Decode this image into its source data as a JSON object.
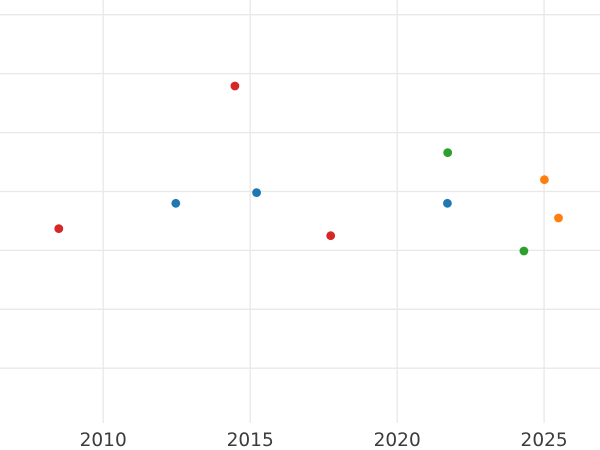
{
  "chart_data": {
    "type": "scatter",
    "title": "",
    "xlabel": "",
    "ylabel": "",
    "xlim": [
      2006.49,
      2026.9
    ],
    "ylim": [
      0.07,
      7.25
    ],
    "xtick_values": [
      2010,
      2015,
      2020,
      2025
    ],
    "xtick_labels": [
      "2010",
      "2015",
      "2020",
      "2025"
    ],
    "ytick_labels": [],
    "y_gridline_values": [
      1,
      2,
      3,
      4,
      5,
      6,
      7
    ],
    "grid": true,
    "legend_position": "none",
    "marker_radius_px": 4.4,
    "series": [
      {
        "name": "red",
        "color": "#d62728",
        "points": [
          {
            "x": 2008.49,
            "y": 3.37
          },
          {
            "x": 2014.48,
            "y": 5.79
          },
          {
            "x": 2017.74,
            "y": 3.25
          }
        ]
      },
      {
        "name": "blue",
        "color": "#1f77b4",
        "points": [
          {
            "x": 2012.47,
            "y": 3.8
          },
          {
            "x": 2015.22,
            "y": 3.98
          },
          {
            "x": 2021.71,
            "y": 3.8
          }
        ]
      },
      {
        "name": "green",
        "color": "#2ca02c",
        "points": [
          {
            "x": 2021.72,
            "y": 4.66
          },
          {
            "x": 2024.31,
            "y": 2.99
          }
        ]
      },
      {
        "name": "orange",
        "color": "#ff7f0e",
        "points": [
          {
            "x": 2025.01,
            "y": 4.2
          },
          {
            "x": 2025.49,
            "y": 3.55
          }
        ]
      }
    ]
  },
  "style": {
    "background_color": "#ffffff",
    "gridline_color": "#e8e8e8",
    "tick_label_color": "#3c3c3c"
  }
}
